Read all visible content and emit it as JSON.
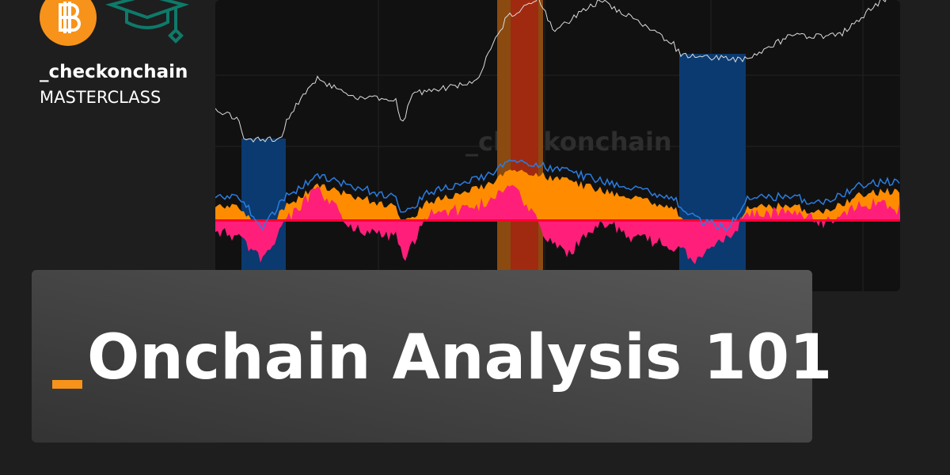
{
  "brand": {
    "name": "_checkonchain",
    "subtitle": "MASTERCLASS"
  },
  "chart": {
    "watermark": "_checkonchain"
  },
  "banner": {
    "title": "Onchain Analysis 101"
  }
}
